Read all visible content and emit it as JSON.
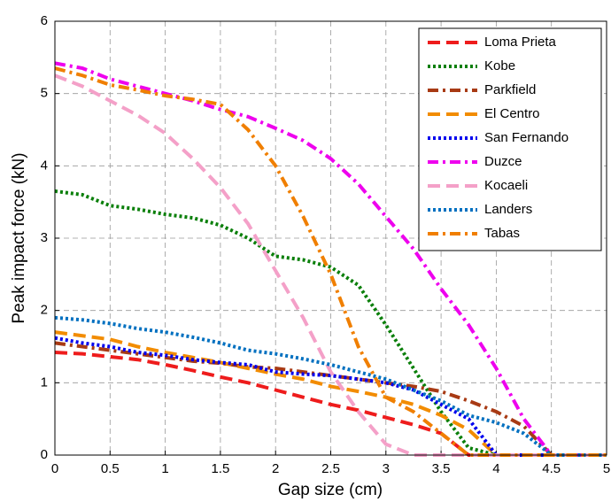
{
  "chart_data": {
    "type": "line",
    "xlabel": "Gap size (cm)",
    "ylabel": "Peak impact force (kN)",
    "x": [
      0,
      0.25,
      0.5,
      0.75,
      1,
      1.25,
      1.5,
      1.75,
      2,
      2.25,
      2.5,
      2.75,
      3,
      3.25,
      3.5,
      3.75,
      4,
      4.25,
      4.5,
      4.75,
      5
    ],
    "xlim": [
      0,
      5
    ],
    "xticks": [
      0,
      0.5,
      1,
      1.5,
      2,
      2.5,
      3,
      3.5,
      4,
      4.5,
      5
    ],
    "ylim": [
      0,
      6
    ],
    "yticks": [
      0,
      1,
      2,
      3,
      4,
      5,
      6
    ],
    "grid": true,
    "legend": "upper right",
    "series": [
      {
        "name": "Loma Prieta",
        "color": "#ee1c1c",
        "dash": "dashed",
        "values": [
          1.42,
          1.4,
          1.36,
          1.32,
          1.25,
          1.17,
          1.08,
          1.0,
          0.9,
          0.8,
          0.7,
          0.62,
          0.52,
          0.42,
          0.3,
          0,
          0,
          0,
          0,
          0,
          0
        ]
      },
      {
        "name": "Kobe",
        "color": "#0a7f0a",
        "dash": "dotted",
        "values": [
          3.65,
          3.6,
          3.45,
          3.4,
          3.33,
          3.28,
          3.18,
          3.0,
          2.75,
          2.7,
          2.6,
          2.35,
          1.8,
          1.2,
          0.6,
          0.1,
          0,
          0,
          0,
          0,
          0
        ]
      },
      {
        "name": "Parkfield",
        "color": "#a83a14",
        "dash": "dashdot",
        "values": [
          1.55,
          1.5,
          1.45,
          1.4,
          1.35,
          1.3,
          1.27,
          1.22,
          1.2,
          1.15,
          1.1,
          1.05,
          1.0,
          0.95,
          0.88,
          0.75,
          0.6,
          0.4,
          0,
          0,
          0
        ]
      },
      {
        "name": "El Centro",
        "color": "#f28c00",
        "dash": "dashed",
        "values": [
          1.7,
          1.65,
          1.6,
          1.5,
          1.42,
          1.35,
          1.28,
          1.2,
          1.12,
          1.05,
          0.95,
          0.88,
          0.8,
          0.7,
          0.55,
          0.35,
          0,
          0,
          0,
          0,
          0
        ]
      },
      {
        "name": "San Fernando",
        "color": "#0000ee",
        "dash": "dotted",
        "values": [
          1.62,
          1.55,
          1.5,
          1.42,
          1.38,
          1.32,
          1.28,
          1.25,
          1.15,
          1.12,
          1.1,
          1.05,
          1.0,
          0.9,
          0.7,
          0.5,
          0,
          0,
          0,
          0,
          0
        ]
      },
      {
        "name": "Duzce",
        "color": "#ee00ee",
        "dash": "dashdot",
        "values": [
          5.42,
          5.35,
          5.2,
          5.1,
          5.0,
          4.9,
          4.78,
          4.68,
          4.52,
          4.35,
          4.1,
          3.75,
          3.3,
          2.85,
          2.3,
          1.8,
          1.2,
          0.5,
          0,
          0,
          0
        ]
      },
      {
        "name": "Kocaeli",
        "color": "#f4a0c8",
        "dash": "dashed",
        "values": [
          5.25,
          5.1,
          4.9,
          4.7,
          4.45,
          4.1,
          3.7,
          3.2,
          2.55,
          1.9,
          1.15,
          0.6,
          0.15,
          0,
          0,
          0,
          0,
          0,
          0,
          0,
          0
        ]
      },
      {
        "name": "Landers",
        "color": "#0070c0",
        "dash": "dotted",
        "values": [
          1.9,
          1.87,
          1.82,
          1.75,
          1.7,
          1.63,
          1.55,
          1.45,
          1.4,
          1.33,
          1.25,
          1.15,
          1.05,
          0.9,
          0.75,
          0.55,
          0.45,
          0.3,
          0,
          0,
          0
        ]
      },
      {
        "name": "Tabas",
        "color": "#f07f00",
        "dash": "dashdot",
        "values": [
          5.35,
          5.25,
          5.12,
          5.05,
          4.97,
          4.92,
          4.85,
          4.5,
          4.0,
          3.3,
          2.5,
          1.5,
          0.8,
          0.6,
          0.3,
          0,
          0,
          0,
          0,
          0,
          0
        ]
      }
    ]
  }
}
